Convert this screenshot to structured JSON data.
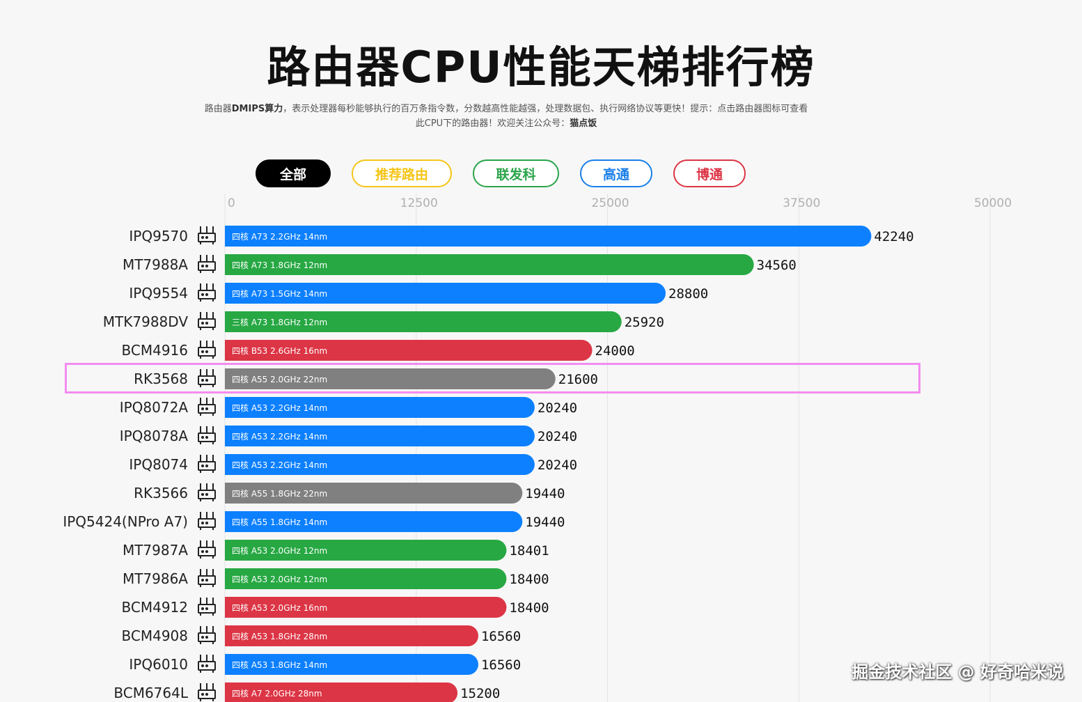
{
  "header": {
    "title": "路由器CPU性能天梯排行榜",
    "subtitle_pre": "路由器",
    "subtitle_bold1": "DMIPS算力",
    "subtitle_mid": "，表示处理器每秒能够执行的百万条指令数，分数越高性能越强，处理数据包、执行网络协议等更快！提示：点击路由器图标可查看此CPU下的路由器！欢迎关注公众号：",
    "subtitle_bold2": "猫点饭"
  },
  "filters": [
    {
      "label": "全部",
      "color": "#000000",
      "active": true
    },
    {
      "label": "推荐路由",
      "color": "#f5c518",
      "active": false
    },
    {
      "label": "联发科",
      "color": "#2aa44a",
      "active": false
    },
    {
      "label": "高通",
      "color": "#1a7fe8",
      "active": false
    },
    {
      "label": "博通",
      "color": "#dc3545",
      "active": false
    }
  ],
  "colors": {
    "qualcomm": "#0d80ff",
    "mediatek": "#27a843",
    "broadcom": "#dc3545",
    "rockchip": "#808080",
    "highlight": "#f38cf0"
  },
  "watermark": "掘金技术社区 @ 好奇哈米说",
  "chart_data": {
    "type": "bar",
    "orientation": "horizontal",
    "xlim": [
      0,
      50000
    ],
    "xticks": [
      "0",
      "12500",
      "25000",
      "37500",
      "50000"
    ],
    "grid": true,
    "highlighted": "RK3568",
    "categories": [
      "IPQ9570",
      "MT7988A",
      "IPQ9554",
      "MTK7988DV",
      "BCM4916",
      "RK3568",
      "IPQ8072A",
      "IPQ8078A",
      "IPQ8074",
      "RK3566",
      "IPQ5424(NPro A7)",
      "MT7987A",
      "MT7986A",
      "BCM4912",
      "BCM4908",
      "IPQ6010",
      "BCM6764L"
    ],
    "values": [
      42240,
      34560,
      28800,
      25920,
      24000,
      21600,
      20240,
      20240,
      20240,
      19440,
      19440,
      18401,
      18400,
      18400,
      16560,
      16560,
      15200
    ],
    "value_labels": [
      "42240",
      "34560",
      "28800",
      "25920",
      "24000",
      "21600",
      "20240",
      "20240",
      "20240",
      "19440",
      "19440",
      "18401",
      "18400",
      "18400",
      "16560",
      "16560",
      "15200"
    ],
    "bar_labels": [
      "四核 A73 2.2GHz 14nm",
      "四核 A73 1.8GHz 12nm",
      "四核 A73 1.5GHz 14nm",
      "三核 A73 1.8GHz 12nm",
      "四核 B53 2.6GHz 16nm",
      "四核 A55 2.0GHz 22nm",
      "四核 A53 2.2GHz 14nm",
      "四核 A53 2.2GHz 14nm",
      "四核 A53 2.2GHz 14nm",
      "四核 A55 1.8GHz 22nm",
      "四核 A55 1.8GHz 14nm",
      "四核 A53 2.0GHz 12nm",
      "四核 A53 2.0GHz 12nm",
      "四核 A53 2.0GHz 16nm",
      "四核 A53 1.8GHz 28nm",
      "四核 A53 1.8GHz 14nm",
      "四核 A7 2.0GHz 28nm"
    ],
    "vendors": [
      "qualcomm",
      "mediatek",
      "qualcomm",
      "mediatek",
      "broadcom",
      "rockchip",
      "qualcomm",
      "qualcomm",
      "qualcomm",
      "rockchip",
      "qualcomm",
      "mediatek",
      "mediatek",
      "broadcom",
      "broadcom",
      "qualcomm",
      "broadcom"
    ]
  }
}
